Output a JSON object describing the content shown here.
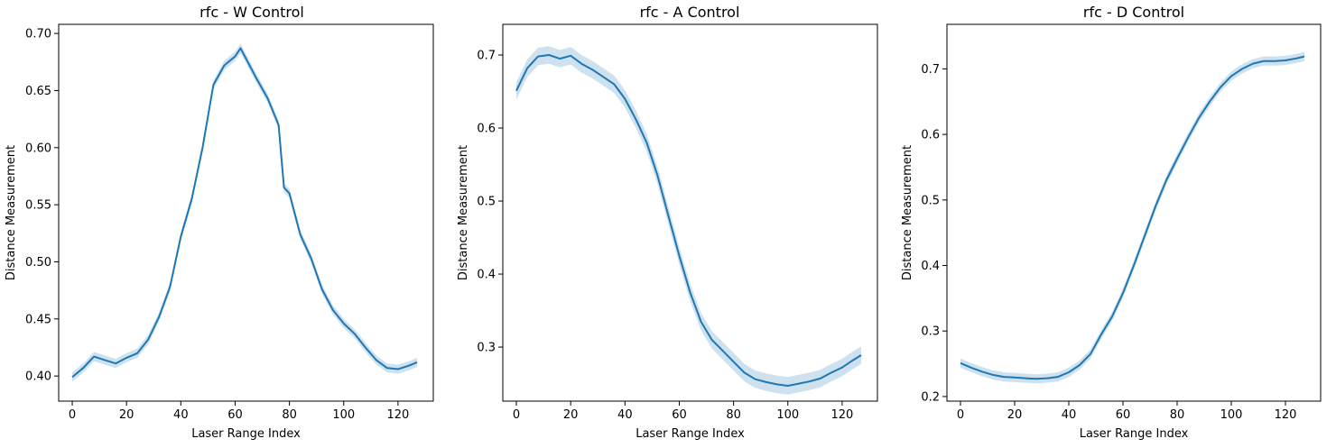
{
  "figure": {
    "charts": [
      {
        "title": "rfc - W Control",
        "xlabel": "Laser Range Index",
        "ylabel": "Distance Measurement"
      },
      {
        "title": "rfc - A Control",
        "xlabel": "Laser Range Index",
        "ylabel": "Distance Measurement"
      },
      {
        "title": "rfc - D Control",
        "xlabel": "Laser Range Index",
        "ylabel": "Distance Measurement"
      }
    ]
  },
  "colors": {
    "line": "#1f77b4",
    "band": "#1f77b4"
  },
  "chart_data": [
    {
      "type": "line",
      "title": "rfc - W Control",
      "xlabel": "Laser Range Index",
      "ylabel": "Distance Measurement",
      "xlim": [
        -5,
        133
      ],
      "ylim": [
        0.378,
        0.708
      ],
      "xticks": [
        0,
        20,
        40,
        60,
        80,
        100,
        120
      ],
      "xtick_labels": [
        "0",
        "20",
        "40",
        "60",
        "80",
        "100",
        "120"
      ],
      "yticks": [
        0.4,
        0.45,
        0.5,
        0.55,
        0.6,
        0.65,
        0.7
      ],
      "ytick_labels": [
        "0.40",
        "0.45",
        "0.50",
        "0.55",
        "0.60",
        "0.65",
        "0.70"
      ],
      "band_halfwidth": 0.004,
      "x": [
        0,
        4,
        8,
        12,
        16,
        20,
        24,
        28,
        32,
        36,
        40,
        44,
        48,
        52,
        56,
        60,
        62,
        64,
        68,
        72,
        76,
        78,
        80,
        84,
        88,
        92,
        96,
        100,
        104,
        108,
        112,
        116,
        120,
        124,
        127
      ],
      "y": [
        0.399,
        0.407,
        0.417,
        0.414,
        0.411,
        0.416,
        0.42,
        0.432,
        0.452,
        0.478,
        0.522,
        0.555,
        0.6,
        0.655,
        0.672,
        0.68,
        0.687,
        0.678,
        0.66,
        0.643,
        0.62,
        0.565,
        0.56,
        0.524,
        0.503,
        0.476,
        0.458,
        0.446,
        0.437,
        0.425,
        0.414,
        0.407,
        0.406,
        0.409,
        0.412
      ]
    },
    {
      "type": "line",
      "title": "rfc - A Control",
      "xlabel": "Laser Range Index",
      "ylabel": "Distance Measurement",
      "xlim": [
        -5,
        133
      ],
      "ylim": [
        0.226,
        0.742
      ],
      "xticks": [
        0,
        20,
        40,
        60,
        80,
        100,
        120
      ],
      "xtick_labels": [
        "0",
        "20",
        "40",
        "60",
        "80",
        "100",
        "120"
      ],
      "yticks": [
        0.3,
        0.4,
        0.5,
        0.6,
        0.7
      ],
      "ytick_labels": [
        "0.3",
        "0.4",
        "0.5",
        "0.6",
        "0.7"
      ],
      "band_halfwidth": 0.012,
      "x": [
        0,
        4,
        8,
        12,
        16,
        20,
        24,
        28,
        32,
        36,
        40,
        44,
        48,
        52,
        56,
        60,
        64,
        68,
        72,
        76,
        80,
        84,
        88,
        92,
        96,
        100,
        104,
        108,
        112,
        116,
        120,
        124,
        127
      ],
      "y": [
        0.651,
        0.682,
        0.698,
        0.7,
        0.695,
        0.699,
        0.688,
        0.68,
        0.67,
        0.66,
        0.64,
        0.612,
        0.58,
        0.535,
        0.48,
        0.425,
        0.375,
        0.335,
        0.31,
        0.295,
        0.28,
        0.265,
        0.256,
        0.252,
        0.249,
        0.247,
        0.25,
        0.253,
        0.257,
        0.265,
        0.272,
        0.282,
        0.289
      ]
    },
    {
      "type": "line",
      "title": "rfc - D Control",
      "xlabel": "Laser Range Index",
      "ylabel": "Distance Measurement",
      "xlim": [
        -5,
        133
      ],
      "ylim": [
        0.193,
        0.768
      ],
      "xticks": [
        0,
        20,
        40,
        60,
        80,
        100,
        120
      ],
      "xtick_labels": [
        "0",
        "20",
        "40",
        "60",
        "80",
        "100",
        "120"
      ],
      "yticks": [
        0.2,
        0.3,
        0.4,
        0.5,
        0.6,
        0.7
      ],
      "ytick_labels": [
        "0.2",
        "0.3",
        "0.4",
        "0.5",
        "0.6",
        "0.7"
      ],
      "band_halfwidth": 0.007,
      "x": [
        0,
        4,
        8,
        12,
        16,
        20,
        24,
        28,
        32,
        36,
        40,
        44,
        48,
        52,
        56,
        60,
        64,
        68,
        72,
        76,
        80,
        84,
        88,
        92,
        96,
        100,
        104,
        108,
        112,
        116,
        120,
        124,
        127
      ],
      "y": [
        0.251,
        0.244,
        0.238,
        0.233,
        0.23,
        0.229,
        0.228,
        0.227,
        0.228,
        0.23,
        0.237,
        0.248,
        0.265,
        0.295,
        0.322,
        0.358,
        0.4,
        0.445,
        0.49,
        0.53,
        0.563,
        0.595,
        0.625,
        0.65,
        0.672,
        0.689,
        0.7,
        0.708,
        0.712,
        0.712,
        0.713,
        0.716,
        0.719
      ]
    }
  ]
}
